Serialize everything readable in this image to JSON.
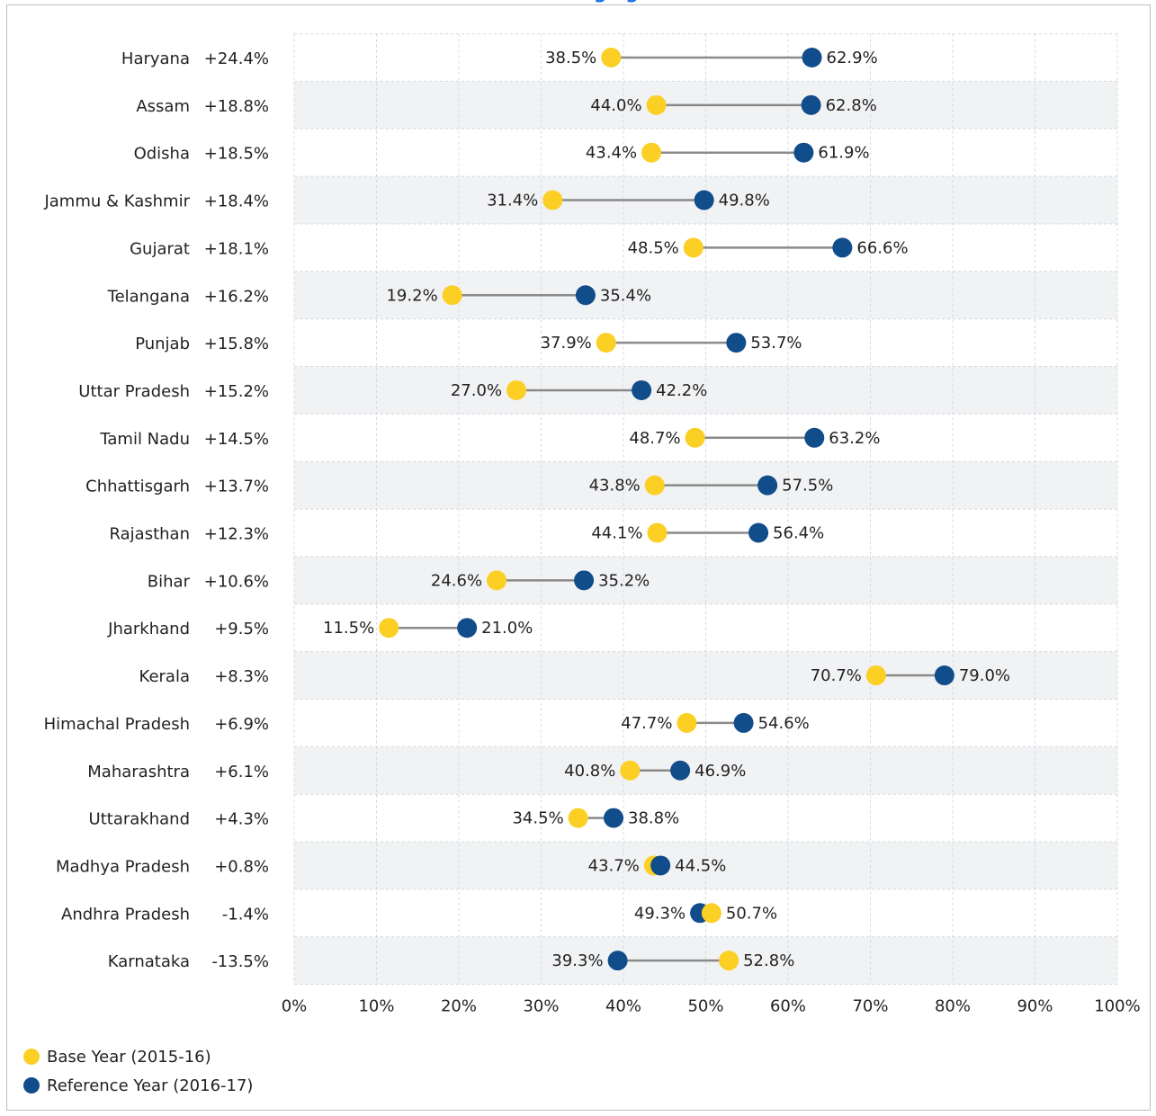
{
  "page": {
    "top_text": "ging"
  },
  "colors": {
    "base": "#FBCF24",
    "reference": "#114C8B",
    "connector": "#8a8a8a",
    "band": "#f1f2f4",
    "grid": "#d5d8dc",
    "text": "#222222"
  },
  "chart_data": {
    "type": "dumbbell",
    "xlim": [
      0,
      100
    ],
    "x_unit": "%",
    "x_ticks": [
      0,
      10,
      20,
      30,
      40,
      50,
      60,
      70,
      80,
      90,
      100
    ],
    "x_tick_labels": [
      "0%",
      "10%",
      "20%",
      "30%",
      "40%",
      "50%",
      "60%",
      "70%",
      "80%",
      "90%",
      "100%"
    ],
    "grid": true,
    "legend_position": "bottom-left",
    "series": [
      {
        "name": "Base Year (2015-16)",
        "color": "#FBCF24"
      },
      {
        "name": "Reference Year (2016-17)",
        "color": "#114C8B"
      }
    ],
    "rows": [
      {
        "state": "Haryana",
        "change": "+24.4%",
        "base": 38.5,
        "reference": 62.9
      },
      {
        "state": "Assam",
        "change": "+18.8%",
        "base": 44.0,
        "reference": 62.8
      },
      {
        "state": "Odisha",
        "change": "+18.5%",
        "base": 43.4,
        "reference": 61.9
      },
      {
        "state": "Jammu & Kashmir",
        "change": "+18.4%",
        "base": 31.4,
        "reference": 49.8
      },
      {
        "state": "Gujarat",
        "change": "+18.1%",
        "base": 48.5,
        "reference": 66.6
      },
      {
        "state": "Telangana",
        "change": "+16.2%",
        "base": 19.2,
        "reference": 35.4
      },
      {
        "state": "Punjab",
        "change": "+15.8%",
        "base": 37.9,
        "reference": 53.7
      },
      {
        "state": "Uttar Pradesh",
        "change": "+15.2%",
        "base": 27.0,
        "reference": 42.2
      },
      {
        "state": "Tamil Nadu",
        "change": "+14.5%",
        "base": 48.7,
        "reference": 63.2
      },
      {
        "state": "Chhattisgarh",
        "change": "+13.7%",
        "base": 43.8,
        "reference": 57.5
      },
      {
        "state": "Rajasthan",
        "change": "+12.3%",
        "base": 44.1,
        "reference": 56.4
      },
      {
        "state": "Bihar",
        "change": "+10.6%",
        "base": 24.6,
        "reference": 35.2
      },
      {
        "state": "Jharkhand",
        "change": "+9.5%",
        "base": 11.5,
        "reference": 21.0
      },
      {
        "state": "Kerala",
        "change": "+8.3%",
        "base": 70.7,
        "reference": 79.0
      },
      {
        "state": "Himachal Pradesh",
        "change": "+6.9%",
        "base": 47.7,
        "reference": 54.6
      },
      {
        "state": "Maharashtra",
        "change": "+6.1%",
        "base": 40.8,
        "reference": 46.9
      },
      {
        "state": "Uttarakhand",
        "change": "+4.3%",
        "base": 34.5,
        "reference": 38.8
      },
      {
        "state": "Madhya Pradesh",
        "change": "+0.8%",
        "base": 43.7,
        "reference": 44.5
      },
      {
        "state": "Andhra Pradesh",
        "change": "-1.4%",
        "base": 50.7,
        "reference": 49.3
      },
      {
        "state": "Karnataka",
        "change": "-13.5%",
        "base": 52.8,
        "reference": 39.3
      }
    ]
  }
}
